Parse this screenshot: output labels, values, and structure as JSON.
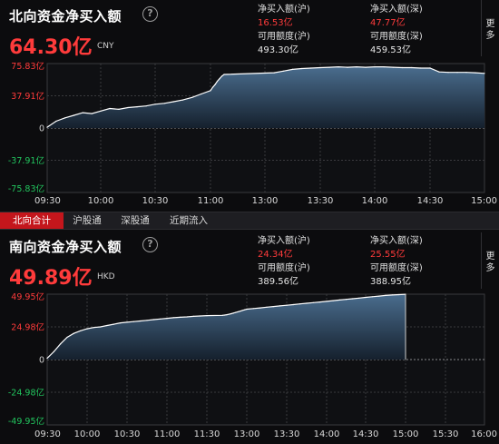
{
  "north": {
    "title": "北向资金净买入额",
    "help_glyph": "?",
    "value": "64.30亿",
    "currency": "CNY",
    "stats": {
      "net_sh_label": "净买入额(沪)",
      "net_sh_value": "16.53亿",
      "net_sz_label": "净买入额(深)",
      "net_sz_value": "47.77亿",
      "quota_sh_label": "可用额度(沪)",
      "quota_sh_value": "493.30亿",
      "quota_sz_label": "可用额度(深)",
      "quota_sz_value": "459.53亿"
    },
    "more_label": "更多"
  },
  "tabs": [
    "北向合计",
    "沪股通",
    "深股通",
    "近期流入"
  ],
  "south": {
    "title": "南向资金净买入额",
    "help_glyph": "?",
    "value": "49.89亿",
    "currency": "HKD",
    "stats": {
      "net_sh_label": "净买入额(沪)",
      "net_sh_value": "24.34亿",
      "net_sz_label": "净买入额(深)",
      "net_sz_value": "25.55亿",
      "quota_sh_label": "可用额度(沪)",
      "quota_sh_value": "389.56亿",
      "quota_sz_label": "可用额度(深)",
      "quota_sz_value": "388.95亿"
    },
    "more_label": "更多"
  },
  "colors": {
    "accent_red": "#ff3b3b",
    "tab_active": "#c4161c",
    "line": "#ffffff",
    "area_top": "#4a6d8e",
    "area_bottom": "#15202d"
  },
  "chart_data": [
    {
      "type": "area",
      "title": "",
      "xlabel": "",
      "ylabel": "",
      "x_ticks": [
        "09:30",
        "10:00",
        "10:30",
        "11:00",
        "13:00",
        "13:30",
        "14:00",
        "14:30",
        "15:00"
      ],
      "y_ticks": [
        "75.83亿",
        "37.91亿",
        "0",
        "-37.91亿",
        "-75.83亿"
      ],
      "ylim": [
        -75.83,
        75.83
      ],
      "grid": true,
      "x": [
        "09:30",
        "09:35",
        "09:40",
        "09:45",
        "09:50",
        "09:55",
        "10:00",
        "10:05",
        "10:10",
        "10:15",
        "10:20",
        "10:25",
        "10:30",
        "10:35",
        "10:40",
        "10:45",
        "10:50",
        "10:55",
        "11:00",
        "11:05",
        "11:10",
        "11:15",
        "11:20",
        "11:25",
        "11:30",
        "13:05",
        "13:10",
        "13:15",
        "13:20",
        "13:25",
        "13:30",
        "13:35",
        "13:40",
        "13:45",
        "13:50",
        "13:55",
        "14:00",
        "14:05",
        "14:10",
        "14:15",
        "14:20",
        "14:25",
        "14:30",
        "14:35",
        "14:40",
        "14:45",
        "14:50",
        "14:55",
        "15:00"
      ],
      "values": [
        1,
        8,
        12,
        15,
        18,
        17,
        20,
        23,
        22,
        24,
        25,
        26,
        28,
        29,
        31,
        33,
        36,
        40,
        44,
        48,
        51,
        55,
        58,
        61,
        63,
        65,
        67,
        69,
        70,
        70.5,
        71,
        71.5,
        72,
        71.5,
        72,
        71.5,
        72,
        72,
        71.5,
        71,
        71,
        70.5,
        70.5,
        66,
        65.5,
        65.5,
        65.5,
        65,
        64.3
      ]
    },
    {
      "type": "area",
      "title": "",
      "xlabel": "",
      "ylabel": "",
      "x_ticks": [
        "09:30",
        "10:00",
        "10:30",
        "11:00",
        "11:30",
        "13:00",
        "13:30",
        "14:00",
        "14:30",
        "15:00",
        "15:30",
        "16:00"
      ],
      "y_ticks": [
        "49.95亿",
        "24.98亿",
        "0",
        "-24.98亿",
        "-49.95亿"
      ],
      "ylim": [
        -49.95,
        49.95
      ],
      "grid": true,
      "x": [
        "09:30",
        "09:35",
        "09:40",
        "09:45",
        "09:50",
        "09:55",
        "10:00",
        "10:05",
        "10:10",
        "10:15",
        "10:20",
        "10:25",
        "10:30",
        "10:35",
        "10:40",
        "10:45",
        "10:50",
        "10:55",
        "11:00",
        "11:05",
        "11:10",
        "11:15",
        "11:20",
        "11:25",
        "11:30",
        "12:05",
        "12:10",
        "12:15",
        "12:20",
        "12:25",
        "12:30",
        "12:35",
        "12:40",
        "12:45",
        "12:50",
        "12:55",
        "13:00",
        "13:05",
        "13:10",
        "13:15",
        "13:20",
        "13:25",
        "13:30",
        "13:35",
        "13:40",
        "13:45",
        "13:50",
        "13:55",
        "14:00",
        "14:05",
        "14:10",
        "14:15",
        "14:20",
        "14:25",
        "14:30",
        "14:35",
        "14:40",
        "14:45",
        "14:50",
        "14:55",
        "15:00"
      ],
      "values": [
        1,
        6,
        12,
        17,
        20,
        22,
        23.5,
        24.5,
        25,
        26,
        27,
        28,
        28.5,
        29,
        29.5,
        30,
        30.5,
        31,
        31.5,
        32,
        32.3,
        32.6,
        33,
        33.3,
        33.6,
        33.8,
        34,
        34.3,
        34.6,
        35,
        35.5,
        36,
        36.5,
        37,
        37.5,
        38,
        38.5,
        39,
        39.5,
        40,
        40.5,
        41,
        41.5,
        42,
        42.5,
        43,
        43.5,
        44,
        44.5,
        45,
        45.5,
        46,
        46.5,
        47,
        47.5,
        48,
        48.5,
        49,
        49.3,
        49.6,
        49.89
      ]
    }
  ]
}
